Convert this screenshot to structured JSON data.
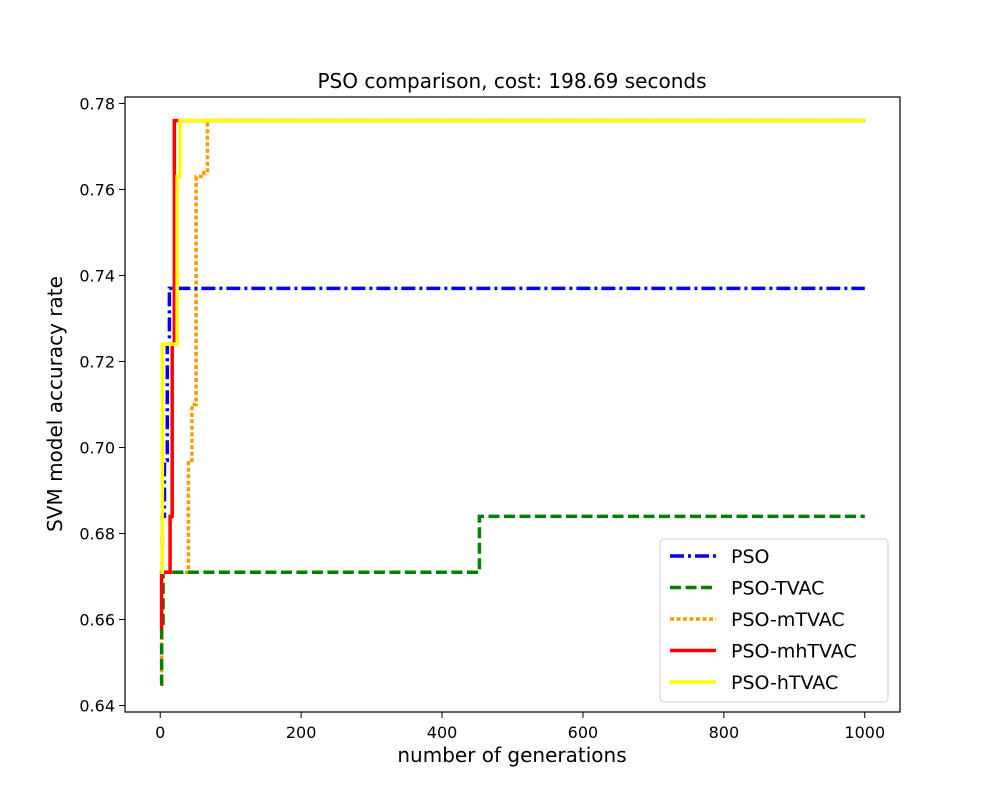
{
  "chart_data": {
    "type": "line",
    "title": "PSO comparison, cost: 198.69 seconds",
    "xlabel": "number of generations",
    "ylabel": "SVM model accuracy rate",
    "xlim": [
      -50,
      1050
    ],
    "ylim": [
      0.6385,
      0.7815
    ],
    "xticks": [
      0,
      200,
      400,
      600,
      800,
      1000
    ],
    "yticks": [
      0.64,
      0.66,
      0.68,
      0.7,
      0.72,
      0.74,
      0.76,
      0.78
    ],
    "ytick_labels": [
      "0.64",
      "0.66",
      "0.68",
      "0.70",
      "0.72",
      "0.74",
      "0.76",
      "0.78"
    ],
    "grid": false,
    "legend_position": "bottom-right",
    "series": [
      {
        "name": "PSO",
        "color": "#0000ff",
        "style": "dashdot",
        "points": [
          [
            0,
            0.671
          ],
          [
            3,
            0.671
          ],
          [
            3,
            0.684
          ],
          [
            6,
            0.684
          ],
          [
            6,
            0.697
          ],
          [
            10,
            0.697
          ],
          [
            10,
            0.724
          ],
          [
            13,
            0.724
          ],
          [
            13,
            0.737
          ],
          [
            1000,
            0.737
          ]
        ]
      },
      {
        "name": "PSO-TVAC",
        "color": "#008000",
        "style": "dashed",
        "points": [
          [
            0,
            0.645
          ],
          [
            2,
            0.645
          ],
          [
            2,
            0.658
          ],
          [
            4,
            0.658
          ],
          [
            4,
            0.671
          ],
          [
            453,
            0.671
          ],
          [
            453,
            0.684
          ],
          [
            1000,
            0.684
          ]
        ]
      },
      {
        "name": "PSO-mTVAC",
        "color": "#ff9900",
        "style": "dotted",
        "points": [
          [
            0,
            0.645
          ],
          [
            2,
            0.645
          ],
          [
            2,
            0.671
          ],
          [
            40,
            0.671
          ],
          [
            40,
            0.697
          ],
          [
            45,
            0.697
          ],
          [
            45,
            0.71
          ],
          [
            51,
            0.71
          ],
          [
            51,
            0.763
          ],
          [
            62,
            0.763
          ],
          [
            62,
            0.764
          ],
          [
            67,
            0.764
          ],
          [
            67,
            0.776
          ],
          [
            1000,
            0.776
          ]
        ]
      },
      {
        "name": "PSO-mhTVAC",
        "color": "#ff0000",
        "style": "solid",
        "points": [
          [
            0,
            0.658
          ],
          [
            2,
            0.658
          ],
          [
            2,
            0.671
          ],
          [
            14,
            0.671
          ],
          [
            14,
            0.684
          ],
          [
            17,
            0.684
          ],
          [
            17,
            0.724
          ],
          [
            20,
            0.724
          ],
          [
            20,
            0.776
          ],
          [
            1000,
            0.776
          ]
        ]
      },
      {
        "name": "PSO-hTVAC",
        "color": "#ffff00",
        "style": "solid",
        "points": [
          [
            0,
            0.671
          ],
          [
            3,
            0.671
          ],
          [
            3,
            0.724
          ],
          [
            24,
            0.724
          ],
          [
            24,
            0.763
          ],
          [
            28,
            0.763
          ],
          [
            28,
            0.776
          ],
          [
            1000,
            0.776
          ]
        ]
      }
    ]
  }
}
